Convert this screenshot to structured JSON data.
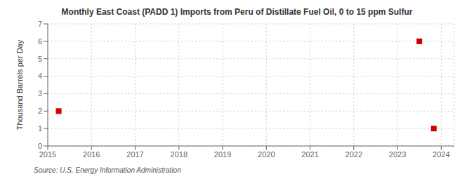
{
  "chart_data": {
    "type": "scatter",
    "title": "Monthly East Coast (PADD 1) Imports from Peru of Distillate Fuel Oil, 0 to 15 ppm Sulfur",
    "y_label": "Thousand Barrels per Day",
    "annotations": [
      "Source: U.S. Energy Information Administration"
    ],
    "x": [
      2015.25,
      2023.5,
      2023.83
    ],
    "values": [
      2.0,
      6.0,
      1.0
    ],
    "color": "#cc0000",
    "marker": "square",
    "xlim": [
      2015.0,
      2024.3
    ],
    "ylim": [
      0,
      7
    ],
    "xticks": [
      2015,
      2016,
      2017,
      2018,
      2019,
      2020,
      2021,
      2022,
      2023,
      2024
    ],
    "yticks": [
      0,
      1,
      2,
      3,
      4,
      5,
      6,
      7
    ],
    "grid": true
  }
}
